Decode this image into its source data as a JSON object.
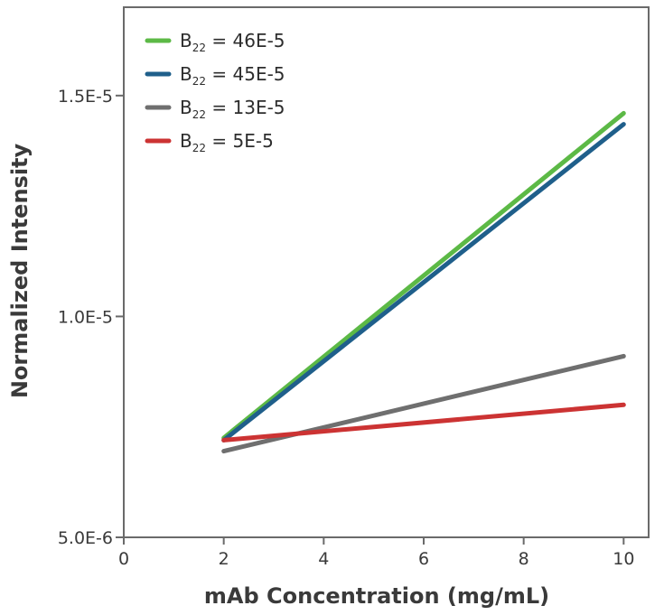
{
  "chart_data": {
    "type": "line",
    "title": "",
    "xlabel": "mAb Concentration (mg/mL)",
    "ylabel": "Normalized Intensity",
    "xlim": [
      0,
      10.5
    ],
    "ylim": [
      5e-06,
      1.7e-05
    ],
    "x_ticks": [
      0,
      2,
      4,
      6,
      8,
      10
    ],
    "x_tick_labels": [
      "0",
      "2",
      "4",
      "6",
      "8",
      "10"
    ],
    "y_ticks": [
      5e-06,
      1e-05,
      1.5e-05
    ],
    "y_tick_labels": [
      "5.0E-6",
      "1.0E-5",
      "1.5E-5"
    ],
    "grid": false,
    "legend_position": "top-left",
    "series": [
      {
        "name": "46E-5",
        "legend_prefix": "B",
        "legend_subscript": "22",
        "legend_suffix": " = 46E-5",
        "color": "#5cb946",
        "x": [
          2,
          10
        ],
        "y": [
          7.25e-06,
          1.46e-05
        ]
      },
      {
        "name": "45E-5",
        "legend_prefix": "B",
        "legend_subscript": "22",
        "legend_suffix": " = 45E-5",
        "color": "#1f5f8b",
        "x": [
          2,
          10
        ],
        "y": [
          7.2e-06,
          1.435e-05
        ]
      },
      {
        "name": "13E-5",
        "legend_prefix": "B",
        "legend_subscript": "22",
        "legend_suffix": " =  13E-5",
        "color": "#6f6f6f",
        "x": [
          2,
          10
        ],
        "y": [
          6.95e-06,
          9.1e-06
        ]
      },
      {
        "name": "5E-5",
        "legend_prefix": "B",
        "legend_subscript": "22",
        "legend_suffix": " =    5E-5",
        "color": "#cc3333",
        "x": [
          2,
          10
        ],
        "y": [
          7.2e-06,
          8e-06
        ]
      }
    ]
  }
}
